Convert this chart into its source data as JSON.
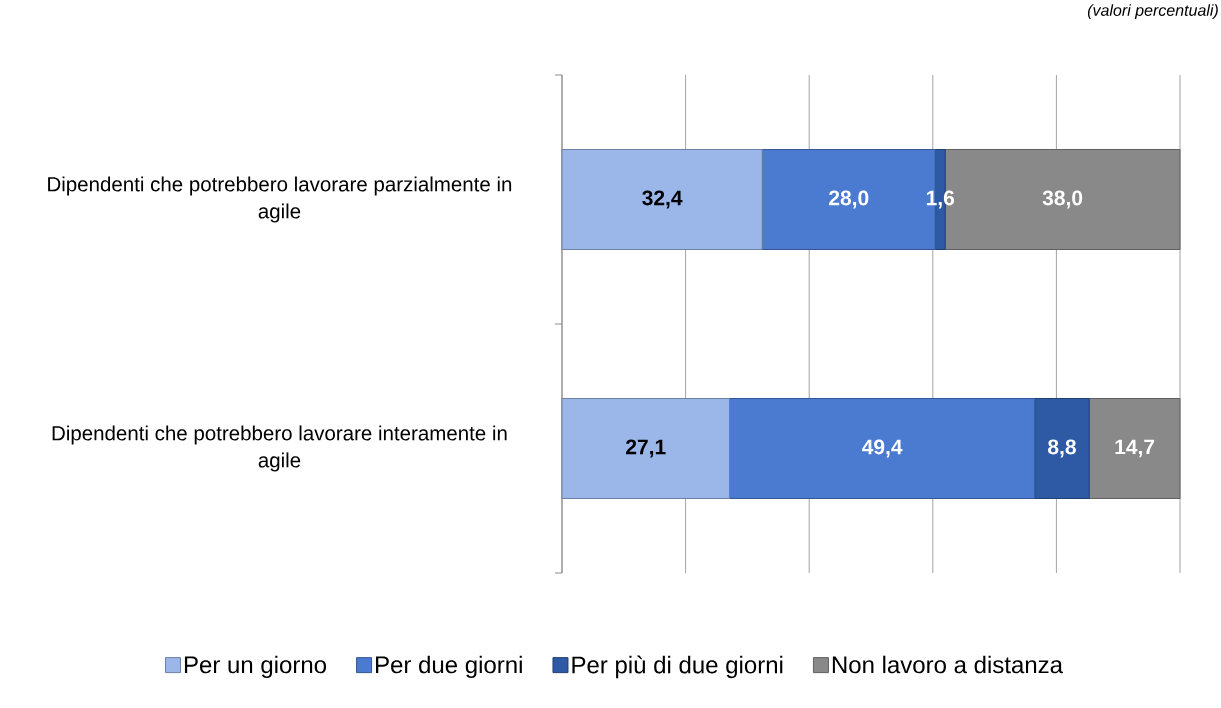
{
  "chart_data": {
    "type": "bar",
    "orientation": "horizontal",
    "stacked": true,
    "categories": [
      "Dipendenti che potrebbero lavorare parzialmente in agile",
      "Dipendenti che potrebbero lavorare interamente in agile"
    ],
    "series": [
      {
        "name": "Per un giorno",
        "color": "#9bb7ea",
        "values": [
          32.4,
          27.1
        ],
        "value_labels": [
          "32,4",
          "27,1"
        ]
      },
      {
        "name": "Per due giorni",
        "color": "#4a7bd0",
        "values": [
          28.0,
          49.4
        ],
        "value_labels": [
          "28,0",
          "49,4"
        ]
      },
      {
        "name": "Per più di due giorni",
        "color": "#2e5aa5",
        "values": [
          1.6,
          8.8
        ],
        "value_labels": [
          "1,6",
          "8,8"
        ]
      },
      {
        "name": "Non lavoro a distanza",
        "color": "#898989",
        "values": [
          38.0,
          14.7
        ],
        "value_labels": [
          "38,0",
          "14,7"
        ]
      }
    ],
    "xlim": [
      0,
      100
    ],
    "xticks": [
      {
        "value": 0,
        "label": null
      },
      {
        "value": 20,
        "label": null
      },
      {
        "value": 40,
        "label": null
      },
      {
        "value": 60,
        "label": null
      },
      {
        "value": 80,
        "label": null
      },
      {
        "value": 100,
        "label": null
      }
    ],
    "grid": "x",
    "tick_labels": "y",
    "legend": "bottom",
    "annotations": [
      "(valori percentuali)"
    ]
  }
}
